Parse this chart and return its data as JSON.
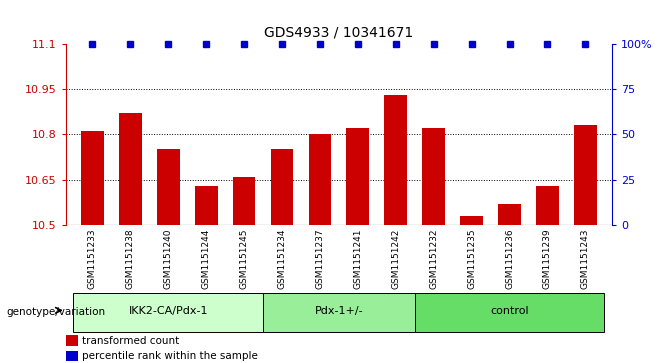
{
  "title": "GDS4933 / 10341671",
  "samples": [
    "GSM1151233",
    "GSM1151238",
    "GSM1151240",
    "GSM1151244",
    "GSM1151245",
    "GSM1151234",
    "GSM1151237",
    "GSM1151241",
    "GSM1151242",
    "GSM1151232",
    "GSM1151235",
    "GSM1151236",
    "GSM1151239",
    "GSM1151243"
  ],
  "bar_values": [
    10.81,
    10.87,
    10.75,
    10.63,
    10.66,
    10.75,
    10.8,
    10.82,
    10.93,
    10.82,
    10.53,
    10.57,
    10.63,
    10.83
  ],
  "percentile_values": [
    100,
    100,
    100,
    100,
    100,
    100,
    100,
    100,
    100,
    100,
    100,
    100,
    100,
    100
  ],
  "groups": [
    {
      "label": "IKK2-CA/Pdx-1",
      "start": 0,
      "end": 5,
      "color": "#ccffcc"
    },
    {
      "label": "Pdx-1+/-",
      "start": 5,
      "end": 9,
      "color": "#99ee99"
    },
    {
      "label": "control",
      "start": 9,
      "end": 14,
      "color": "#66dd66"
    }
  ],
  "bar_color": "#cc0000",
  "dot_color": "#0000cc",
  "ylim_left": [
    10.5,
    11.1
  ],
  "ylim_right": [
    0,
    100
  ],
  "yticks_left": [
    10.5,
    10.65,
    10.8,
    10.95,
    11.1
  ],
  "yticks_right": [
    0,
    25,
    50,
    75,
    100
  ],
  "grid_lines": [
    10.65,
    10.8,
    10.95
  ],
  "bar_width": 0.6,
  "legend_items": [
    {
      "label": "transformed count",
      "color": "#cc0000"
    },
    {
      "label": "percentile rank within the sample",
      "color": "#0000cc"
    }
  ],
  "group_label_text": "genotype/variation"
}
